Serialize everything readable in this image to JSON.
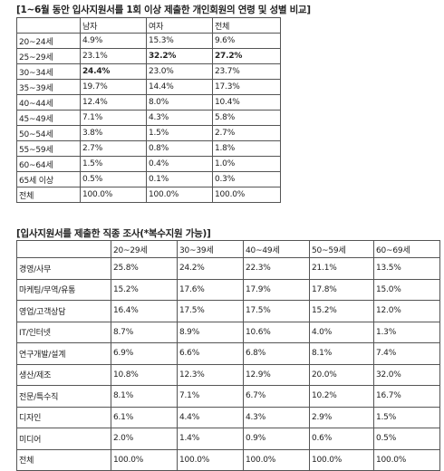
{
  "table1": {
    "title": "[1~6월 동안 입사지원서를 1회 이상 제출한 개인회원의 연령 및 성별 비교]",
    "headers": [
      "",
      "남자",
      "여자",
      "전체"
    ],
    "rows": [
      [
        "20~24세",
        "4.9%",
        "15.3%",
        "9.6%"
      ],
      [
        "25~29세",
        "23.1%",
        "32.2%",
        "27.2%"
      ],
      [
        "30~34세",
        "24.4%",
        "23.0%",
        "23.7%"
      ],
      [
        "35~39세",
        "19.7%",
        "14.4%",
        "17.3%"
      ],
      [
        "40~44세",
        "12.4%",
        "8.0%",
        "10.4%"
      ],
      [
        "45~49세",
        "7.1%",
        "4.3%",
        "5.8%"
      ],
      [
        "50~54세",
        "3.8%",
        "1.5%",
        "2.7%"
      ],
      [
        "55~59세",
        "2.7%",
        "0.8%",
        "1.8%"
      ],
      [
        "60~64세",
        "1.5%",
        "0.4%",
        "1.0%"
      ],
      [
        "65세 이상",
        "0.5%",
        "0.1%",
        "0.3%"
      ],
      [
        "전체",
        "100.0%",
        "100.0%",
        "100.0%"
      ]
    ]
  },
  "table2": {
    "title": "[입사지원서를 제출한 직종 조사(*복수지원 가능)]",
    "headers": [
      "",
      "20~29세",
      "30~39세",
      "40~49세",
      "50~59세",
      "60~69세"
    ],
    "rows": [
      [
        "경영/사무",
        "25.8%",
        "24.2%",
        "22.3%",
        "21.1%",
        "13.5%"
      ],
      [
        "마케팅/무역/유통",
        "15.2%",
        "17.6%",
        "17.9%",
        "17.8%",
        "15.0%"
      ],
      [
        "영업/고객상담",
        "16.4%",
        "17.5%",
        "17.5%",
        "15.2%",
        "12.0%"
      ],
      [
        "IT/인터넷",
        "8.7%",
        "8.9%",
        "10.6%",
        "4.0%",
        "1.3%"
      ],
      [
        "연구개발/설계",
        "6.9%",
        "6.6%",
        "6.8%",
        "8.1%",
        "7.4%"
      ],
      [
        "생산/제조",
        "10.8%",
        "12.3%",
        "12.9%",
        "20.0%",
        "32.0%"
      ],
      [
        "전문/특수직",
        "8.1%",
        "7.1%",
        "6.7%",
        "10.2%",
        "16.7%"
      ],
      [
        "디자인",
        "6.1%",
        "4.4%",
        "4.3%",
        "2.9%",
        "1.5%"
      ],
      [
        "미디어",
        "2.0%",
        "1.4%",
        "0.9%",
        "0.6%",
        "0.5%"
      ],
      [
        "전체",
        "100.0%",
        "100.0%",
        "100.0%",
        "100.0%",
        "100.0%"
      ]
    ]
  }
}
